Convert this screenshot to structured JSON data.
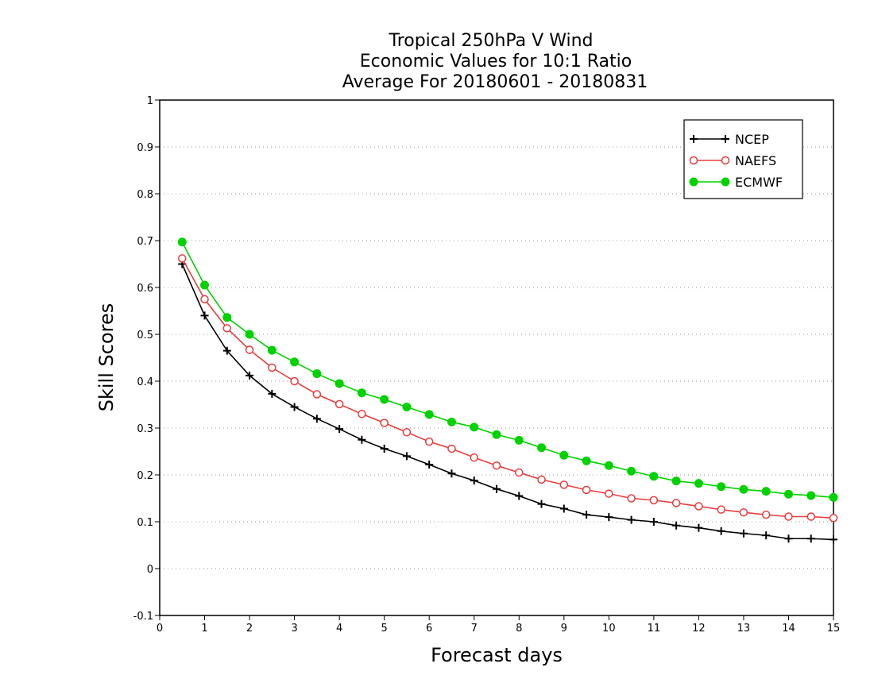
{
  "chart_data": {
    "type": "line",
    "title": [
      "Tropical 250hPa V Wind",
      "Economic Values for 10:1 Ratio",
      "Average For 20180601 - 20180831"
    ],
    "xlabel": "Forecast days",
    "ylabel": "Skill Scores",
    "xlim": [
      0,
      15
    ],
    "ylim": [
      -0.1,
      1
    ],
    "xticks": [
      0,
      1,
      2,
      3,
      4,
      5,
      6,
      7,
      8,
      9,
      10,
      11,
      12,
      13,
      14,
      15
    ],
    "yticks": [
      -0.1,
      0,
      0.1,
      0.2,
      0.3,
      0.4,
      0.5,
      0.6,
      0.7,
      0.8,
      0.9,
      1
    ],
    "ytick_labels": [
      "-0.1",
      "0",
      "0.1",
      "0.2",
      "0.3",
      "0.4",
      "0.5",
      "0.6",
      "0.7",
      "0.8",
      "0.9",
      "1"
    ],
    "grid": "horizontal dotted",
    "legend_position": "top-right",
    "x": [
      0.5,
      1,
      1.5,
      2,
      2.5,
      3,
      3.5,
      4,
      4.5,
      5,
      5.5,
      6,
      6.5,
      7,
      7.5,
      8,
      8.5,
      9,
      9.5,
      10,
      10.5,
      11,
      11.5,
      12,
      12.5,
      13,
      13.5,
      14,
      14.5,
      15
    ],
    "series": [
      {
        "name": "NCEP",
        "color": "#000000",
        "marker": "plus",
        "values": [
          0.65,
          0.54,
          0.465,
          0.412,
          0.373,
          0.345,
          0.32,
          0.298,
          0.275,
          0.256,
          0.24,
          0.222,
          0.203,
          0.188,
          0.17,
          0.155,
          0.138,
          0.128,
          0.115,
          0.11,
          0.104,
          0.1,
          0.092,
          0.087,
          0.08,
          0.075,
          0.071,
          0.064,
          0.064,
          0.062
        ]
      },
      {
        "name": "NAEFS",
        "color": "#e83c3c",
        "marker": "open-circle",
        "values": [
          0.662,
          0.575,
          0.513,
          0.467,
          0.429,
          0.4,
          0.372,
          0.351,
          0.33,
          0.311,
          0.291,
          0.271,
          0.256,
          0.237,
          0.22,
          0.205,
          0.19,
          0.179,
          0.168,
          0.16,
          0.15,
          0.146,
          0.14,
          0.133,
          0.126,
          0.12,
          0.115,
          0.111,
          0.111,
          0.108
        ]
      },
      {
        "name": "ECMWF",
        "color": "#00d200",
        "marker": "filled-circle",
        "values": [
          0.697,
          0.605,
          0.536,
          0.5,
          0.466,
          0.441,
          0.416,
          0.395,
          0.375,
          0.361,
          0.345,
          0.329,
          0.313,
          0.302,
          0.286,
          0.274,
          0.258,
          0.242,
          0.23,
          0.22,
          0.208,
          0.197,
          0.187,
          0.182,
          0.175,
          0.169,
          0.165,
          0.159,
          0.156,
          0.152
        ]
      }
    ]
  }
}
